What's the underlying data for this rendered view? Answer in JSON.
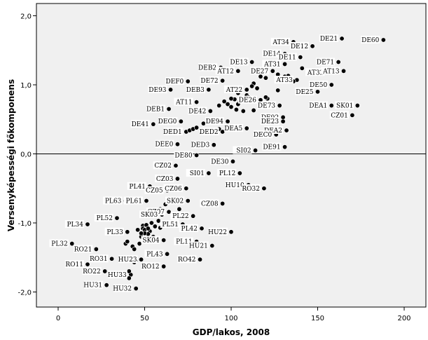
{
  "chart_data": {
    "type": "scatter",
    "title": "",
    "xlabel": "GDP/lakos, 2008",
    "ylabel": "Versenyképességi főkomponens",
    "xlim": [
      -15,
      210
    ],
    "ylim": [
      -2.2,
      2.1
    ],
    "xticks": [
      0,
      50,
      100,
      150,
      200
    ],
    "xtick_labels": [
      "0",
      "50",
      "100",
      "150",
      "200"
    ],
    "yticks": [
      -2.0,
      -1.0,
      0.0,
      1.0,
      2.0
    ],
    "ytick_labels": [
      "-2,0",
      "-1,0",
      "0,0",
      "1,0",
      "2,0"
    ],
    "reference_line_y": 0,
    "grid": false,
    "legend": "none",
    "points": [
      {
        "label": "DE60",
        "x": 188,
        "y": 1.65
      },
      {
        "label": "DE21",
        "x": 164,
        "y": 1.67
      },
      {
        "label": "AT34",
        "x": 136,
        "y": 1.62
      },
      {
        "label": "DE12",
        "x": 147,
        "y": 1.56
      },
      {
        "label": "DE14",
        "x": 131,
        "y": 1.45
      },
      {
        "label": "DE11",
        "x": 140,
        "y": 1.4
      },
      {
        "label": "DE13",
        "x": 112,
        "y": 1.33
      },
      {
        "label": "DE71",
        "x": 162,
        "y": 1.33
      },
      {
        "label": "AT31",
        "x": 131,
        "y": 1.3
      },
      {
        "label": "DEB2",
        "x": 94,
        "y": 1.25
      },
      {
        "label": "AT12",
        "x": 104,
        "y": 1.2
      },
      {
        "label": "DE27",
        "x": 124,
        "y": 1.2
      },
      {
        "label": "AT32",
        "x": 156,
        "y": 1.18
      },
      {
        "label": "AT13",
        "x": 165,
        "y": 1.2
      },
      {
        "label": "DEF0",
        "x": 75,
        "y": 1.05
      },
      {
        "label": "DE72",
        "x": 95,
        "y": 1.06
      },
      {
        "label": "AT33",
        "x": 138,
        "y": 1.07
      },
      {
        "label": "DE50",
        "x": 158,
        "y": 1.0
      },
      {
        "label": "DE93",
        "x": 65,
        "y": 0.93
      },
      {
        "label": "DEB3",
        "x": 87,
        "y": 0.93
      },
      {
        "label": "AT22",
        "x": 109,
        "y": 0.93
      },
      {
        "label": "DE25",
        "x": 150,
        "y": 0.9
      },
      {
        "label": "AT11",
        "x": 80,
        "y": 0.75
      },
      {
        "label": "DE26",
        "x": 117,
        "y": 0.78
      },
      {
        "label": "DE73",
        "x": 128,
        "y": 0.7
      },
      {
        "label": "DEA1",
        "x": 158,
        "y": 0.7
      },
      {
        "label": "SK01",
        "x": 173,
        "y": 0.7
      },
      {
        "label": "DEB1",
        "x": 64,
        "y": 0.65
      },
      {
        "label": "DE42",
        "x": 88,
        "y": 0.62
      },
      {
        "label": "DE92",
        "x": 130,
        "y": 0.53
      },
      {
        "label": "CZ01",
        "x": 170,
        "y": 0.56
      },
      {
        "label": "DE41",
        "x": 55,
        "y": 0.43
      },
      {
        "label": "DEG0",
        "x": 71,
        "y": 0.47
      },
      {
        "label": "DE94",
        "x": 98,
        "y": 0.47
      },
      {
        "label": "DE23",
        "x": 130,
        "y": 0.47
      },
      {
        "label": "DEA5",
        "x": 109,
        "y": 0.37
      },
      {
        "label": "DEA2",
        "x": 132,
        "y": 0.34
      },
      {
        "label": "DED1",
        "x": 74,
        "y": 0.32
      },
      {
        "label": "DED2",
        "x": 95,
        "y": 0.32
      },
      {
        "label": "DEC0",
        "x": 126,
        "y": 0.28
      },
      {
        "label": "DEE0",
        "x": 69,
        "y": 0.14
      },
      {
        "label": "DED3",
        "x": 90,
        "y": 0.13
      },
      {
        "label": "DE91",
        "x": 131,
        "y": 0.1
      },
      {
        "label": "SI02",
        "x": 114,
        "y": 0.05
      },
      {
        "label": "DE80",
        "x": 80,
        "y": -0.02
      },
      {
        "label": "DE30",
        "x": 101,
        "y": -0.11
      },
      {
        "label": "CZ02",
        "x": 68,
        "y": -0.17
      },
      {
        "label": "SI01",
        "x": 87,
        "y": -0.28
      },
      {
        "label": "PL12",
        "x": 105,
        "y": -0.28
      },
      {
        "label": "CZ03",
        "x": 69,
        "y": -0.36
      },
      {
        "label": "HU10",
        "x": 110,
        "y": -0.45
      },
      {
        "label": "RO32",
        "x": 119,
        "y": -0.5
      },
      {
        "label": "PL41",
        "x": 53,
        "y": -0.47
      },
      {
        "label": "CZ06",
        "x": 74,
        "y": -0.5
      },
      {
        "label": "CZ05",
        "x": 63,
        "y": -0.53
      },
      {
        "label": "PL63",
        "x": 39,
        "y": -0.68
      },
      {
        "label": "PL61",
        "x": 51,
        "y": -0.68
      },
      {
        "label": "SK02",
        "x": 75,
        "y": -0.68
      },
      {
        "label": "CZ08",
        "x": 95,
        "y": -0.72
      },
      {
        "label": "CZ07",
        "x": 64,
        "y": -0.84
      },
      {
        "label": "PL22",
        "x": 78,
        "y": -0.9
      },
      {
        "label": "SK03",
        "x": 60,
        "y": -0.88
      },
      {
        "label": "PL52",
        "x": 34,
        "y": -0.93
      },
      {
        "label": "PL34",
        "x": 17,
        "y": -1.02
      },
      {
        "label": "PL51",
        "x": 72,
        "y": -1.02
      },
      {
        "label": "PL42",
        "x": 83,
        "y": -1.08
      },
      {
        "label": "PL33",
        "x": 40,
        "y": -1.13
      },
      {
        "label": "HU22",
        "x": 100,
        "y": -1.13
      },
      {
        "label": "SK04",
        "x": 61,
        "y": -1.25
      },
      {
        "label": "PL11",
        "x": 80,
        "y": -1.27
      },
      {
        "label": "PL32",
        "x": 8,
        "y": -1.3
      },
      {
        "label": "HU21",
        "x": 89,
        "y": -1.33
      },
      {
        "label": "RO21",
        "x": 22,
        "y": -1.38
      },
      {
        "label": "PL43",
        "x": 63,
        "y": -1.45
      },
      {
        "label": "RO31",
        "x": 31,
        "y": -1.52
      },
      {
        "label": "HU23",
        "x": 48,
        "y": -1.53
      },
      {
        "label": "RO42",
        "x": 82,
        "y": -1.53
      },
      {
        "label": "RO11",
        "x": 17,
        "y": -1.6
      },
      {
        "label": "RO12",
        "x": 61,
        "y": -1.63
      },
      {
        "label": "RO22",
        "x": 27,
        "y": -1.7
      },
      {
        "label": "HU33",
        "x": 42,
        "y": -1.75
      },
      {
        "label": "HU31",
        "x": 28,
        "y": -1.9
      },
      {
        "label": "HU32",
        "x": 45,
        "y": -1.95
      },
      {
        "x": 113,
        "y": 1.18
      },
      {
        "x": 127,
        "y": 1.15
      },
      {
        "x": 117,
        "y": 1.12
      },
      {
        "x": 120,
        "y": 1.1
      },
      {
        "x": 131,
        "y": 1.12
      },
      {
        "x": 113,
        "y": 1.02
      },
      {
        "x": 115,
        "y": 0.95
      },
      {
        "x": 104,
        "y": 0.88
      },
      {
        "x": 109,
        "y": 0.85
      },
      {
        "x": 110,
        "y": 0.82
      },
      {
        "x": 102,
        "y": 0.79
      },
      {
        "x": 105,
        "y": 0.76
      },
      {
        "x": 121,
        "y": 0.8
      },
      {
        "x": 96,
        "y": 0.76
      },
      {
        "x": 98,
        "y": 0.72
      },
      {
        "x": 100,
        "y": 0.68
      },
      {
        "x": 103,
        "y": 0.64
      },
      {
        "x": 107,
        "y": 0.62
      },
      {
        "x": 113,
        "y": 0.63
      },
      {
        "x": 93,
        "y": 0.7
      },
      {
        "x": 120,
        "y": 0.82
      },
      {
        "x": 104,
        "y": 0.72
      },
      {
        "x": 127,
        "y": 0.92
      },
      {
        "x": 141,
        "y": 1.24
      },
      {
        "x": 136,
        "y": 1.05
      },
      {
        "x": 133,
        "y": 1.13
      },
      {
        "x": 112,
        "y": 0.98
      },
      {
        "x": 100,
        "y": 0.8
      },
      {
        "x": 84,
        "y": 0.44
      },
      {
        "x": 76,
        "y": 0.34
      },
      {
        "x": 78,
        "y": 0.36
      },
      {
        "x": 80,
        "y": 0.38
      },
      {
        "x": 83,
        "y": 0.3
      },
      {
        "x": 67,
        "y": 0.33
      },
      {
        "x": 69,
        "y": 0.3
      },
      {
        "x": 93,
        "y": 0.36
      },
      {
        "x": 67,
        "y": -0.48
      },
      {
        "x": 70,
        "y": -0.8
      },
      {
        "x": 59,
        "y": -0.8
      },
      {
        "x": 62,
        "y": -0.73
      },
      {
        "x": 58,
        "y": -0.97
      },
      {
        "x": 54,
        "y": -1.0
      },
      {
        "x": 56,
        "y": -1.05
      },
      {
        "x": 59,
        "y": -1.07
      },
      {
        "x": 53,
        "y": -1.12
      },
      {
        "x": 52,
        "y": -1.16
      },
      {
        "x": 55,
        "y": -1.2
      },
      {
        "x": 49,
        "y": -1.04
      },
      {
        "x": 49,
        "y": -1.08
      },
      {
        "x": 50,
        "y": -1.1
      },
      {
        "x": 51,
        "y": -1.03
      },
      {
        "x": 50,
        "y": -1.15
      },
      {
        "x": 48,
        "y": -1.2
      },
      {
        "x": 39,
        "y": -1.3
      },
      {
        "x": 40,
        "y": -1.27
      },
      {
        "x": 43,
        "y": -1.34
      },
      {
        "x": 47,
        "y": -1.3
      },
      {
        "x": 44,
        "y": -1.38
      },
      {
        "x": 43,
        "y": -1.5
      },
      {
        "x": 45,
        "y": -1.55
      },
      {
        "x": 44,
        "y": -1.57
      },
      {
        "x": 41,
        "y": -1.55
      },
      {
        "x": 41,
        "y": -1.7
      },
      {
        "x": 41,
        "y": -1.8
      },
      {
        "x": 48,
        "y": -1.15
      },
      {
        "x": 46,
        "y": -1.1
      },
      {
        "x": 52,
        "y": -1.08
      }
    ]
  }
}
